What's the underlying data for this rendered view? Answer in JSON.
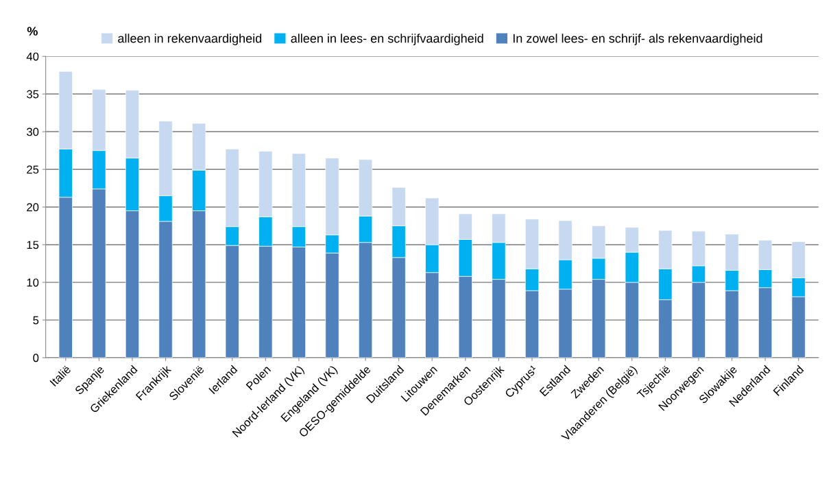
{
  "chart_data": {
    "type": "bar",
    "stacked": true,
    "ylabel": "%",
    "categories": [
      "Italië",
      "Spanje",
      "Griekenland",
      "Frankrijk",
      "Slovenië",
      "Ierland",
      "Polen",
      "Noord-Ierland (VK)",
      "Engeland (VK)",
      "OESO-gemiddelde",
      "Duitsland",
      "Litouwen",
      "Denemarken",
      "Oostenrijk",
      "Cyprus¹",
      "Estland",
      "Zweden",
      "Vlaanderen (België)",
      "Tsjechië",
      "Noorwegen",
      "Slowakije",
      "Nederland",
      "Finland"
    ],
    "series": [
      {
        "name": "In zowel lees- en schrijf- als rekenvaardigheid",
        "color": "#4f81bd",
        "values": [
          21.3,
          22.4,
          19.5,
          18.1,
          19.5,
          14.9,
          14.8,
          14.7,
          13.9,
          15.3,
          13.3,
          11.3,
          10.8,
          10.4,
          8.9,
          9.1,
          10.4,
          10.0,
          7.7,
          10.0,
          8.9,
          9.3,
          8.1
        ]
      },
      {
        "name": "alleen in lees- en schrijfvaardigheid",
        "color": "#00b0f0",
        "values": [
          6.4,
          5.1,
          7.0,
          3.4,
          5.4,
          2.5,
          3.9,
          2.7,
          2.4,
          3.5,
          4.2,
          3.7,
          4.9,
          4.9,
          2.9,
          3.9,
          2.8,
          4.0,
          4.1,
          2.2,
          2.7,
          2.4,
          2.5
        ]
      },
      {
        "name": "alleen in rekenvaardigheid",
        "color": "#c6d9f1",
        "values": [
          10.3,
          8.1,
          9.0,
          9.9,
          6.2,
          10.3,
          8.7,
          9.7,
          10.2,
          7.5,
          5.1,
          6.2,
          3.4,
          3.8,
          6.6,
          5.2,
          4.3,
          3.3,
          5.1,
          4.6,
          4.8,
          3.9,
          4.8
        ]
      }
    ],
    "ylim": [
      0,
      40
    ],
    "yticks": [
      0,
      5,
      10,
      15,
      20,
      25,
      30,
      35,
      40
    ],
    "grid": "y",
    "legend": "top"
  }
}
